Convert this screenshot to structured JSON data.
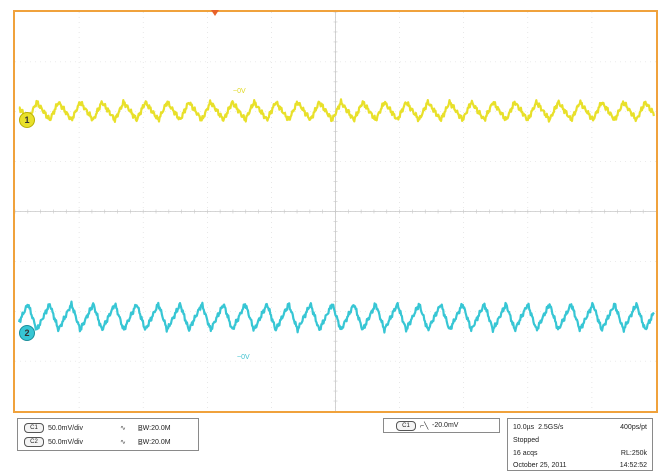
{
  "colors": {
    "frame": "#f0a23c",
    "grid": "#d8d8d8",
    "ch1": "#e8e02a",
    "ch2": "#37c6d4",
    "trigger_marker": "#e8622a"
  },
  "screen": {
    "ch1_marker": "1",
    "ch2_marker": "2",
    "ch1_ground_label": "~0V",
    "ch2_ground_label": "~0V"
  },
  "vertical": {
    "channels": [
      {
        "badge": "C1",
        "scale": "50.0mV/div",
        "coupling_icon": "ac-coupling-icon",
        "bw": "B̲W:20.0M"
      },
      {
        "badge": "C2",
        "scale": "50.0mV/div",
        "coupling_icon": "ac-coupling-icon",
        "bw": "B̲W:20.0M"
      }
    ]
  },
  "trigger": {
    "badge": "C1",
    "slope_icon": "falling-edge-icon",
    "level": "-20.0mV"
  },
  "timebase": {
    "time_per_div": "10.0µs",
    "sample_rate": "2.5GS/s",
    "resolution": "400ps/pt",
    "status": "Stopped",
    "acquisitions": "16 acqs",
    "record_length": "RL:250k",
    "date": "October 25, 2011",
    "time": "14:52:52"
  }
}
